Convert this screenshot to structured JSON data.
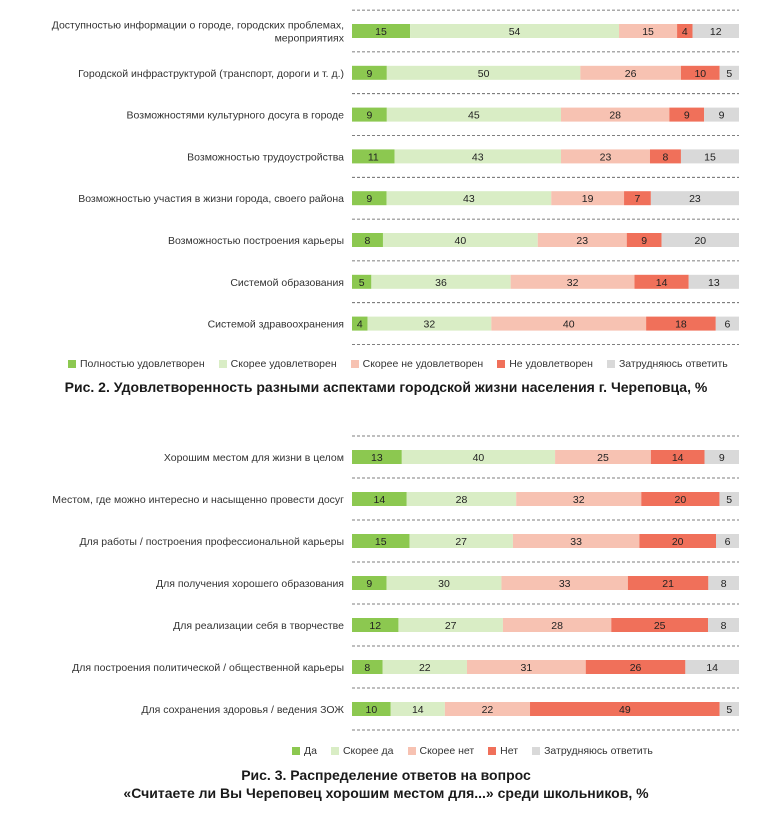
{
  "colors": {
    "dark_green": "#8cc850",
    "light_green": "#d9edc5",
    "light_red": "#f7c2b2",
    "red": "#f0705a",
    "gray": "#d9d9d9"
  },
  "chart_data": [
    {
      "type": "bar",
      "orientation": "horizontal-stacked",
      "title": "Рис. 2. Удовлетворенность разными аспектами городской жизни населения г. Череповца, %",
      "categories": [
        "Доступностью информации о городе, городских проблемах, мероприятиях",
        "Городской инфраструктурой (транспорт, дороги и т. д.)",
        "Возможностями культурного досуга в городе",
        "Возможностью трудоустройства",
        "Возможностью участия в жизни города, своего района",
        "Возможностью построения карьеры",
        "Системой образования",
        "Системой здравоохранения"
      ],
      "category_lines": [
        [
          "Доступностью информации о городе, городских проблемах,",
          "мероприятиях"
        ],
        [
          "Городской инфраструктурой (транспорт, дороги и т. д.)"
        ],
        [
          "Возможностями культурного досуга в городе"
        ],
        [
          "Возможностью трудоустройства"
        ],
        [
          "Возможностью участия в жизни города, своего района"
        ],
        [
          "Возможностью построения карьеры"
        ],
        [
          "Системой образования"
        ],
        [
          "Системой здравоохранения"
        ]
      ],
      "series": [
        {
          "name": "Полностью удовлетворен",
          "color": "#8cc850",
          "values": [
            15,
            9,
            9,
            11,
            9,
            8,
            5,
            4
          ]
        },
        {
          "name": "Скорее удовлетворен",
          "color": "#d9edc5",
          "values": [
            54,
            50,
            45,
            43,
            43,
            40,
            36,
            32
          ]
        },
        {
          "name": "Скорее не удовлетворен",
          "color": "#f7c2b2",
          "values": [
            15,
            26,
            28,
            23,
            19,
            23,
            32,
            40
          ]
        },
        {
          "name": "Не удовлетворен",
          "color": "#f0705a",
          "values": [
            4,
            10,
            9,
            8,
            7,
            9,
            14,
            18
          ]
        },
        {
          "name": "Затрудняюсь ответить",
          "color": "#d9d9d9",
          "values": [
            12,
            5,
            9,
            15,
            23,
            20,
            13,
            6
          ]
        }
      ]
    },
    {
      "type": "bar",
      "orientation": "horizontal-stacked",
      "title": "Рис. 3. Распределение ответов на вопрос «Считаете ли Вы Череповец хорошим местом для...» среди школьников, %",
      "categories": [
        "Хорошим местом для жизни в целом",
        "Местом, где можно интересно и насыщенно провести досуг",
        "Для работы / построения профессиональной карьеры",
        "Для получения хорошего образования",
        "Для реализации себя в творчестве",
        "Для построения политической / общественной карьеры",
        "Для сохранения здоровья / ведения ЗОЖ"
      ],
      "category_lines": [
        [
          "Хорошим местом для жизни в целом"
        ],
        [
          "Местом, где можно интересно и насыщенно провести досуг"
        ],
        [
          "Для работы / построения профессиональной карьеры"
        ],
        [
          "Для получения хорошего образования"
        ],
        [
          "Для реализации себя в творчестве"
        ],
        [
          "Для построения политической / общественной карьеры"
        ],
        [
          "Для сохранения здоровья / ведения ЗОЖ"
        ]
      ],
      "series": [
        {
          "name": "Да",
          "color": "#8cc850",
          "values": [
            13,
            14,
            15,
            9,
            12,
            8,
            10
          ]
        },
        {
          "name": "Скорее да",
          "color": "#d9edc5",
          "values": [
            40,
            28,
            27,
            30,
            27,
            22,
            14
          ]
        },
        {
          "name": "Скорее нет",
          "color": "#f7c2b2",
          "values": [
            25,
            32,
            33,
            33,
            28,
            31,
            22
          ]
        },
        {
          "name": "Нет",
          "color": "#f0705a",
          "values": [
            14,
            20,
            20,
            21,
            25,
            26,
            49
          ]
        },
        {
          "name": "Затрудняюсь ответить",
          "color": "#d9d9d9",
          "values": [
            9,
            5,
            6,
            8,
            8,
            14,
            5
          ]
        }
      ]
    }
  ],
  "legend1": [
    "Полностью удовлетворен",
    "Скорее удовлетворен",
    "Скорее не удовлетворен",
    "Не удовлетворен",
    "Затрудняюсь ответить"
  ],
  "legend2": [
    "Да",
    "Скорее да",
    "Скорее нет",
    "Нет",
    "Затрудняюсь ответить"
  ],
  "captions": {
    "fig1": "Рис. 2. Удовлетворенность разными аспектами городской жизни населения г. Череповца, %",
    "fig2_line1": "Рис. 3. Распределение ответов на вопрос",
    "fig2_line2": "«Считаете ли Вы Череповец хорошим местом для...» среди школьников, %"
  }
}
